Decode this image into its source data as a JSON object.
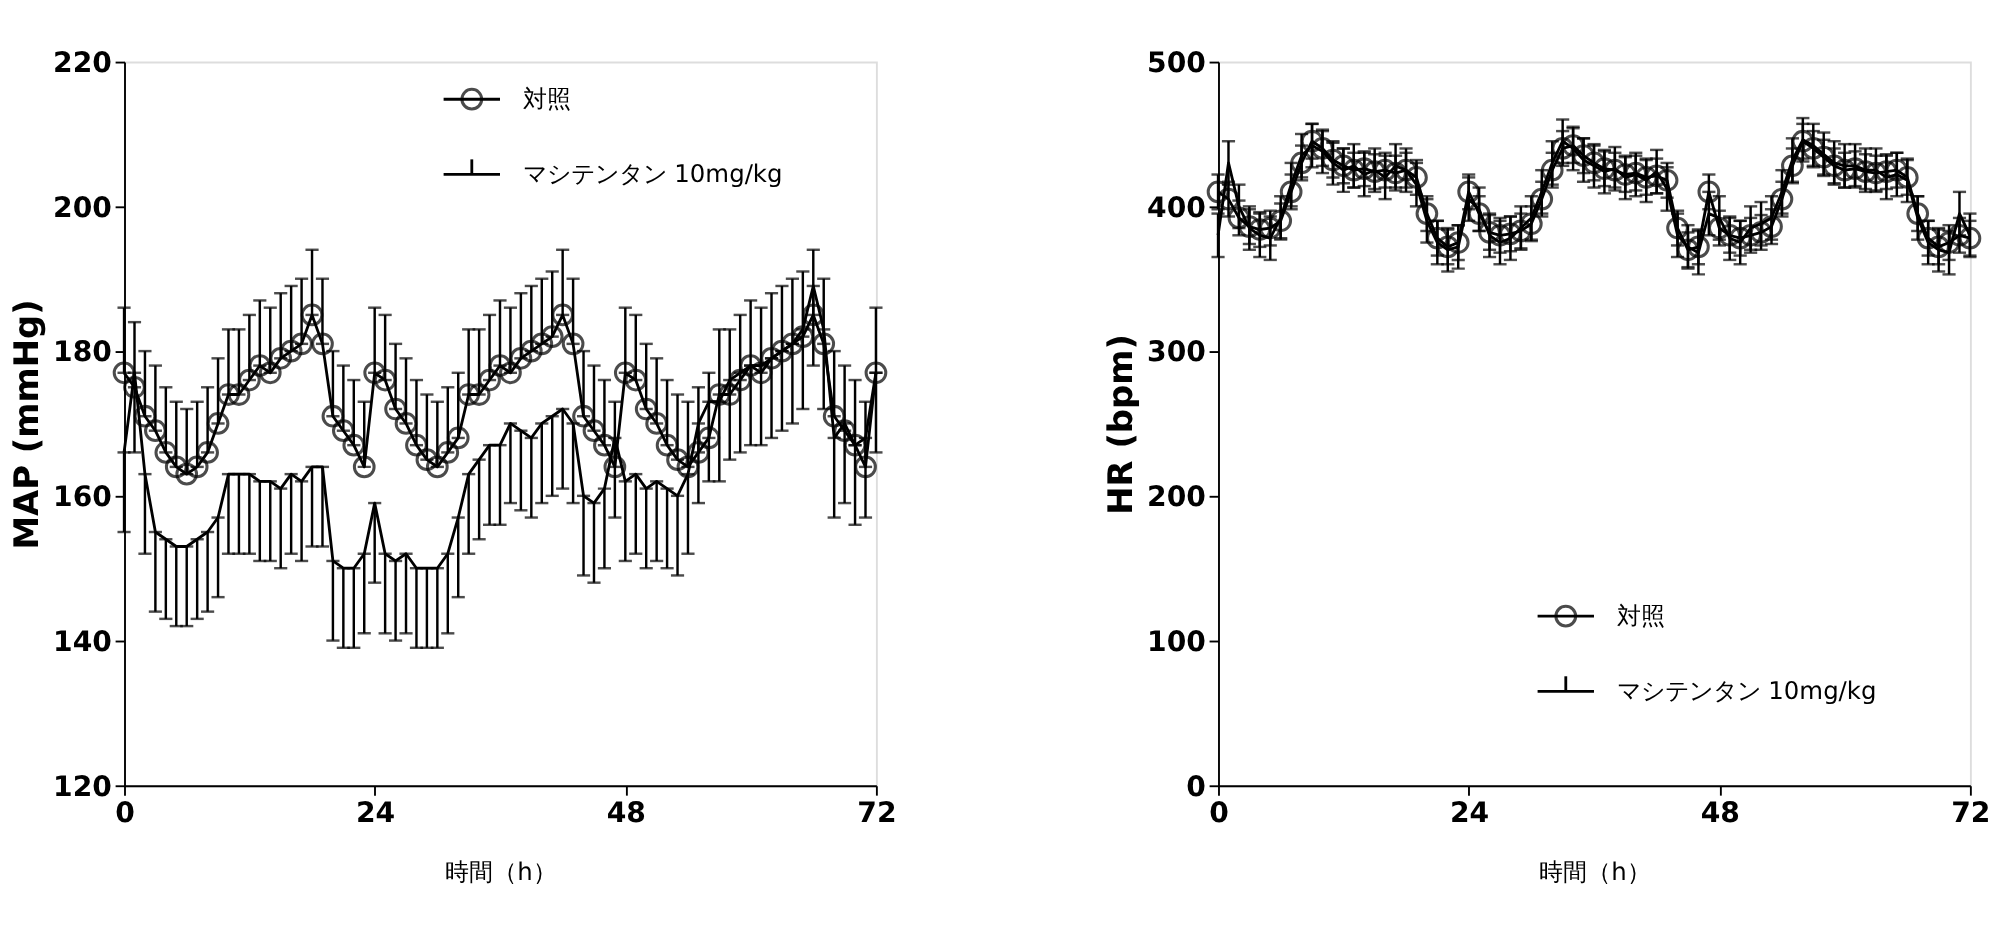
{
  "chart_data": [
    {
      "type": "line",
      "xlabel": "時間（h）",
      "ylabel": "MAP (mmHg)",
      "xlim": [
        0,
        72
      ],
      "xticks": [
        0,
        24,
        48,
        72
      ],
      "ylim": [
        120,
        220
      ],
      "yticks": [
        120,
        140,
        160,
        180,
        200,
        220
      ],
      "grid": false,
      "legend": "top right",
      "x": [
        0,
        1,
        2,
        3,
        4,
        5,
        6,
        7,
        8,
        9,
        10,
        11,
        12,
        13,
        14,
        15,
        16,
        17,
        18,
        19,
        20,
        21,
        22,
        23,
        24,
        25,
        26,
        27,
        28,
        29,
        30,
        31,
        32,
        33,
        34,
        35,
        36,
        37,
        38,
        39,
        40,
        41,
        42,
        43,
        44,
        45,
        46,
        47,
        48,
        49,
        50,
        51,
        52,
        53,
        54,
        55,
        56,
        57,
        58,
        59,
        60,
        61,
        62,
        63,
        64,
        65,
        66,
        67,
        68,
        69,
        70,
        71,
        72
      ],
      "series": [
        {
          "name": "対照",
          "color": "#000000",
          "marker": "circle",
          "values": [
            177,
            175,
            171,
            169,
            166,
            164,
            163,
            164,
            166,
            170,
            174,
            174,
            176,
            178,
            177,
            179,
            180,
            181,
            185,
            181,
            171,
            169,
            167,
            164,
            177,
            176,
            172,
            170,
            167,
            165,
            164,
            166,
            168,
            174,
            174,
            176,
            178,
            177,
            179,
            180,
            181,
            182,
            185,
            181,
            171,
            169,
            167,
            164,
            177,
            176,
            172,
            170,
            167,
            165,
            164,
            166,
            168,
            174,
            174,
            176,
            178,
            177,
            179,
            180,
            181,
            182,
            185,
            181,
            171,
            169,
            167,
            164,
            177
          ],
          "errors": [
            [
              177,
              186
            ],
            [
              175,
              184
            ],
            [
              171,
              180
            ],
            [
              169,
              178
            ],
            [
              166,
              175
            ],
            [
              164,
              173
            ],
            [
              163,
              172
            ],
            [
              164,
              173
            ],
            [
              166,
              175
            ],
            [
              170,
              179
            ],
            [
              174,
              183
            ],
            [
              174,
              183
            ],
            [
              176,
              185
            ],
            [
              178,
              187
            ],
            [
              177,
              186
            ],
            [
              179,
              188
            ],
            [
              180,
              189
            ],
            [
              181,
              190
            ],
            [
              185,
              194
            ],
            [
              181,
              190
            ],
            [
              171,
              180
            ],
            [
              169,
              178
            ],
            [
              167,
              176
            ],
            [
              164,
              173
            ],
            [
              177,
              186
            ],
            [
              176,
              185
            ],
            [
              172,
              181
            ],
            [
              170,
              179
            ],
            [
              167,
              176
            ],
            [
              165,
              174
            ],
            [
              164,
              173
            ],
            [
              166,
              175
            ],
            [
              168,
              177
            ],
            [
              174,
              183
            ],
            [
              174,
              183
            ],
            [
              176,
              185
            ],
            [
              178,
              187
            ],
            [
              177,
              186
            ],
            [
              179,
              188
            ],
            [
              180,
              189
            ],
            [
              181,
              190
            ],
            [
              182,
              191
            ],
            [
              185,
              194
            ],
            [
              181,
              190
            ],
            [
              171,
              180
            ],
            [
              169,
              178
            ],
            [
              167,
              176
            ],
            [
              164,
              173
            ],
            [
              177,
              186
            ],
            [
              176,
              185
            ],
            [
              172,
              181
            ],
            [
              170,
              179
            ],
            [
              167,
              176
            ],
            [
              165,
              174
            ],
            [
              164,
              173
            ],
            [
              166,
              175
            ],
            [
              168,
              177
            ],
            [
              174,
              183
            ],
            [
              174,
              183
            ],
            [
              176,
              185
            ],
            [
              178,
              187
            ],
            [
              177,
              186
            ],
            [
              179,
              188
            ],
            [
              180,
              189
            ],
            [
              181,
              190
            ],
            [
              182,
              191
            ],
            [
              185,
              194
            ],
            [
              181,
              190
            ],
            [
              171,
              180
            ],
            [
              169,
              178
            ],
            [
              167,
              176
            ],
            [
              164,
              173
            ],
            [
              177,
              186
            ]
          ]
        },
        {
          "name": "マシテンタン 10mg/kg",
          "color": "#000000",
          "marker": "none",
          "values": [
            166,
            177,
            163,
            155,
            154,
            153,
            153,
            154,
            155,
            157,
            163,
            163,
            163,
            162,
            162,
            161,
            163,
            162,
            164,
            164,
            151,
            150,
            150,
            152,
            159,
            152,
            151,
            152,
            150,
            150,
            150,
            152,
            157,
            163,
            165,
            167,
            167,
            170,
            169,
            168,
            170,
            171,
            172,
            170,
            160,
            159,
            161,
            168,
            162,
            163,
            161,
            162,
            161,
            160,
            163,
            170,
            173,
            173,
            176,
            177,
            178,
            178,
            179,
            180,
            181,
            183,
            189,
            183,
            168,
            170,
            167,
            168,
            177
          ],
          "errors": [
            [
              155,
              166
            ],
            [
              166,
              177
            ],
            [
              152,
              163
            ],
            [
              144,
              155
            ],
            [
              143,
              154
            ],
            [
              142,
              153
            ],
            [
              142,
              153
            ],
            [
              143,
              154
            ],
            [
              144,
              155
            ],
            [
              146,
              157
            ],
            [
              152,
              163
            ],
            [
              152,
              163
            ],
            [
              152,
              163
            ],
            [
              151,
              162
            ],
            [
              151,
              162
            ],
            [
              150,
              161
            ],
            [
              152,
              163
            ],
            [
              151,
              162
            ],
            [
              153,
              164
            ],
            [
              153,
              164
            ],
            [
              140,
              151
            ],
            [
              139,
              150
            ],
            [
              139,
              150
            ],
            [
              141,
              152
            ],
            [
              148,
              159
            ],
            [
              141,
              152
            ],
            [
              140,
              151
            ],
            [
              141,
              152
            ],
            [
              139,
              150
            ],
            [
              139,
              150
            ],
            [
              139,
              150
            ],
            [
              141,
              152
            ],
            [
              146,
              157
            ],
            [
              152,
              163
            ],
            [
              154,
              165
            ],
            [
              156,
              167
            ],
            [
              156,
              167
            ],
            [
              159,
              170
            ],
            [
              158,
              169
            ],
            [
              157,
              168
            ],
            [
              159,
              170
            ],
            [
              160,
              171
            ],
            [
              161,
              172
            ],
            [
              159,
              170
            ],
            [
              149,
              160
            ],
            [
              148,
              159
            ],
            [
              150,
              161
            ],
            [
              157,
              168
            ],
            [
              151,
              162
            ],
            [
              152,
              163
            ],
            [
              150,
              161
            ],
            [
              151,
              162
            ],
            [
              150,
              161
            ],
            [
              149,
              160
            ],
            [
              152,
              163
            ],
            [
              159,
              170
            ],
            [
              162,
              173
            ],
            [
              162,
              173
            ],
            [
              165,
              176
            ],
            [
              166,
              177
            ],
            [
              167,
              178
            ],
            [
              167,
              178
            ],
            [
              168,
              179
            ],
            [
              169,
              180
            ],
            [
              170,
              181
            ],
            [
              172,
              183
            ],
            [
              178,
              189
            ],
            [
              172,
              183
            ],
            [
              157,
              168
            ],
            [
              159,
              170
            ],
            [
              156,
              167
            ],
            [
              157,
              168
            ],
            [
              166,
              177
            ]
          ]
        }
      ]
    },
    {
      "type": "line",
      "xlabel": "時間（h）",
      "ylabel": "HR (bpm)",
      "xlim": [
        0,
        72
      ],
      "xticks": [
        0,
        24,
        48,
        72
      ],
      "ylim": [
        0,
        500
      ],
      "yticks": [
        0,
        100,
        200,
        300,
        400,
        500
      ],
      "grid": false,
      "legend": "bottom right",
      "x": [
        0,
        1,
        2,
        3,
        4,
        5,
        6,
        7,
        8,
        9,
        10,
        11,
        12,
        13,
        14,
        15,
        16,
        17,
        18,
        19,
        20,
        21,
        22,
        23,
        24,
        25,
        26,
        27,
        28,
        29,
        30,
        31,
        32,
        33,
        34,
        35,
        36,
        37,
        38,
        39,
        40,
        41,
        42,
        43,
        44,
        45,
        46,
        47,
        48,
        49,
        50,
        51,
        52,
        53,
        54,
        55,
        56,
        57,
        58,
        59,
        60,
        61,
        62,
        63,
        64,
        65,
        66,
        67,
        68,
        69,
        70,
        71,
        72
      ],
      "series": [
        {
          "name": "対照",
          "color": "#000000",
          "marker": "circle",
          "values": [
            410,
            405,
            392,
            386,
            384,
            385,
            390,
            410,
            430,
            445,
            440,
            432,
            428,
            425,
            426,
            424,
            425,
            423,
            425,
            420,
            395,
            378,
            372,
            375,
            410,
            395,
            382,
            380,
            381,
            383,
            388,
            405,
            425,
            440,
            442,
            435,
            430,
            426,
            425,
            422,
            423,
            420,
            421,
            418,
            385,
            370,
            372,
            410,
            385,
            380,
            378,
            380,
            382,
            386,
            405,
            428,
            445,
            440,
            434,
            428,
            425,
            426,
            424,
            423,
            424,
            425,
            420,
            395,
            378,
            372,
            375,
            380,
            378
          ],
          "errors": [
            12,
            12,
            12,
            12,
            12,
            12,
            12,
            12,
            12,
            12,
            12,
            12,
            12,
            12,
            12,
            12,
            12,
            12,
            12,
            12,
            12,
            12,
            12,
            12,
            12,
            12,
            12,
            12,
            12,
            12,
            12,
            12,
            12,
            12,
            12,
            12,
            12,
            12,
            12,
            12,
            12,
            12,
            12,
            12,
            12,
            12,
            12,
            12,
            12,
            12,
            12,
            12,
            12,
            12,
            12,
            12,
            12,
            12,
            12,
            12,
            12,
            12,
            12,
            12,
            12,
            12,
            12,
            12,
            12,
            12,
            12,
            12,
            12
          ]
        },
        {
          "name": "マシテンタン 10mg/kg",
          "color": "#000000",
          "marker": "none",
          "values": [
            380,
            430,
            400,
            385,
            380,
            378,
            392,
            415,
            435,
            442,
            438,
            430,
            425,
            428,
            422,
            425,
            420,
            428,
            425,
            415,
            390,
            375,
            370,
            372,
            405,
            398,
            380,
            375,
            378,
            385,
            392,
            410,
            430,
            445,
            440,
            432,
            428,
            424,
            426,
            420,
            422,
            418,
            424,
            412,
            380,
            372,
            368,
            395,
            392,
            378,
            375,
            385,
            388,
            392,
            410,
            432,
            446,
            442,
            436,
            430,
            428,
            428,
            425,
            425,
            420,
            422,
            418,
            392,
            375,
            370,
            368,
            395,
            380
          ],
          "errors": [
            15,
            15,
            15,
            15,
            15,
            15,
            15,
            15,
            15,
            15,
            15,
            15,
            15,
            15,
            15,
            15,
            15,
            15,
            15,
            15,
            15,
            15,
            15,
            15,
            15,
            15,
            15,
            15,
            15,
            15,
            15,
            15,
            15,
            15,
            15,
            15,
            15,
            15,
            15,
            15,
            15,
            15,
            15,
            15,
            15,
            15,
            15,
            15,
            15,
            15,
            15,
            15,
            15,
            15,
            15,
            15,
            15,
            15,
            15,
            15,
            15,
            15,
            15,
            15,
            15,
            15,
            15,
            15,
            15,
            15,
            15,
            15,
            15
          ]
        }
      ]
    }
  ]
}
